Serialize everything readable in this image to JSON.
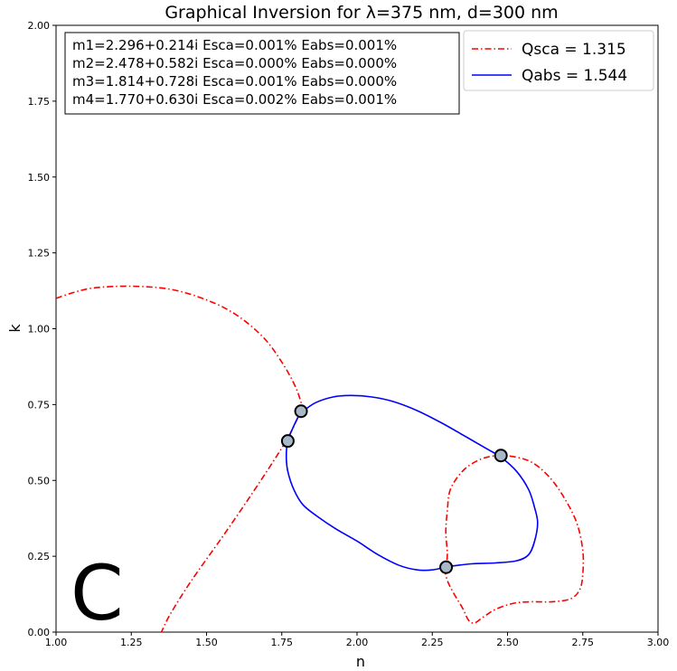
{
  "chart_data": {
    "type": "line",
    "title": "Graphical Inversion for λ=375 nm, d=300 nm",
    "xlabel": "n",
    "ylabel": "k",
    "xlim": [
      1.0,
      3.0
    ],
    "ylim": [
      0.0,
      2.0
    ],
    "xticks": [
      "1.00",
      "1.25",
      "1.50",
      "1.75",
      "2.00",
      "2.25",
      "2.50",
      "2.75",
      "3.00"
    ],
    "yticks": [
      "0.00",
      "0.25",
      "0.50",
      "0.75",
      "1.00",
      "1.25",
      "1.50",
      "1.75",
      "2.00"
    ],
    "grid": false,
    "legend_position": "top-right",
    "panel_label": "C",
    "annotations": [
      "m1=2.296+0.214i Esca=0.001% Eabs=0.001%",
      "m2=2.478+0.582i Esca=0.000% Eabs=0.000%",
      "m3=1.814+0.728i Esca=0.001% Eabs=0.000%",
      "m4=1.770+0.630i Esca=0.002% Eabs=0.001%"
    ],
    "series": [
      {
        "name": "Qsca = 1.315",
        "color": "#ff0000",
        "style": "dash-dot",
        "segments": [
          [
            [
              1.0,
              1.1
            ],
            [
              1.06,
              1.12
            ],
            [
              1.13,
              1.135
            ],
            [
              1.25,
              1.14
            ],
            [
              1.38,
              1.13
            ],
            [
              1.5,
              1.095
            ],
            [
              1.6,
              1.045
            ],
            [
              1.69,
              0.97
            ],
            [
              1.75,
              0.89
            ],
            [
              1.79,
              0.82
            ],
            [
              1.81,
              0.77
            ],
            [
              1.815,
              0.74
            ],
            [
              1.8,
              0.7
            ],
            [
              1.77,
              0.64
            ],
            [
              1.72,
              0.56
            ],
            [
              1.64,
              0.44
            ],
            [
              1.55,
              0.31
            ],
            [
              1.45,
              0.17
            ],
            [
              1.38,
              0.06
            ],
            [
              1.35,
              0.0
            ]
          ],
          [
            [
              2.29,
              0.21
            ],
            [
              2.3,
              0.17
            ],
            [
              2.32,
              0.13
            ],
            [
              2.35,
              0.08
            ],
            [
              2.37,
              0.04
            ],
            [
              2.39,
              0.03
            ],
            [
              2.42,
              0.05
            ],
            [
              2.46,
              0.075
            ],
            [
              2.52,
              0.095
            ],
            [
              2.58,
              0.1
            ],
            [
              2.65,
              0.1
            ],
            [
              2.71,
              0.11
            ],
            [
              2.74,
              0.14
            ],
            [
              2.75,
              0.19
            ],
            [
              2.75,
              0.27
            ],
            [
              2.73,
              0.36
            ],
            [
              2.69,
              0.44
            ],
            [
              2.64,
              0.51
            ],
            [
              2.58,
              0.56
            ],
            [
              2.51,
              0.58
            ],
            [
              2.45,
              0.58
            ],
            [
              2.4,
              0.565
            ],
            [
              2.35,
              0.53
            ],
            [
              2.31,
              0.47
            ],
            [
              2.3,
              0.4
            ],
            [
              2.295,
              0.33
            ],
            [
              2.3,
              0.26
            ],
            [
              2.296,
              0.214
            ]
          ]
        ]
      },
      {
        "name": "Qabs = 1.544",
        "color": "#0000ff",
        "style": "solid",
        "segments": [
          [
            [
              1.81,
              0.72
            ],
            [
              1.86,
              0.755
            ],
            [
              1.92,
              0.775
            ],
            [
              1.98,
              0.78
            ],
            [
              2.05,
              0.775
            ],
            [
              2.12,
              0.76
            ],
            [
              2.2,
              0.73
            ],
            [
              2.28,
              0.69
            ],
            [
              2.36,
              0.645
            ],
            [
              2.43,
              0.605
            ],
            [
              2.48,
              0.575
            ],
            [
              2.53,
              0.53
            ],
            [
              2.57,
              0.47
            ],
            [
              2.59,
              0.41
            ],
            [
              2.6,
              0.36
            ],
            [
              2.59,
              0.3
            ],
            [
              2.57,
              0.255
            ],
            [
              2.53,
              0.235
            ],
            [
              2.46,
              0.228
            ],
            [
              2.38,
              0.225
            ],
            [
              2.3,
              0.215
            ],
            [
              2.25,
              0.205
            ],
            [
              2.2,
              0.205
            ],
            [
              2.14,
              0.22
            ],
            [
              2.07,
              0.255
            ],
            [
              2.0,
              0.3
            ],
            [
              1.93,
              0.34
            ],
            [
              1.87,
              0.38
            ],
            [
              1.82,
              0.42
            ],
            [
              1.79,
              0.47
            ],
            [
              1.77,
              0.53
            ],
            [
              1.765,
              0.58
            ],
            [
              1.77,
              0.63
            ],
            [
              1.79,
              0.68
            ],
            [
              1.81,
              0.72
            ]
          ]
        ]
      }
    ],
    "markers": [
      {
        "label": "m1",
        "n": 2.296,
        "k": 0.214
      },
      {
        "label": "m2",
        "n": 2.478,
        "k": 0.582
      },
      {
        "label": "m3",
        "n": 1.814,
        "k": 0.728
      },
      {
        "label": "m4",
        "n": 1.77,
        "k": 0.63
      }
    ]
  }
}
